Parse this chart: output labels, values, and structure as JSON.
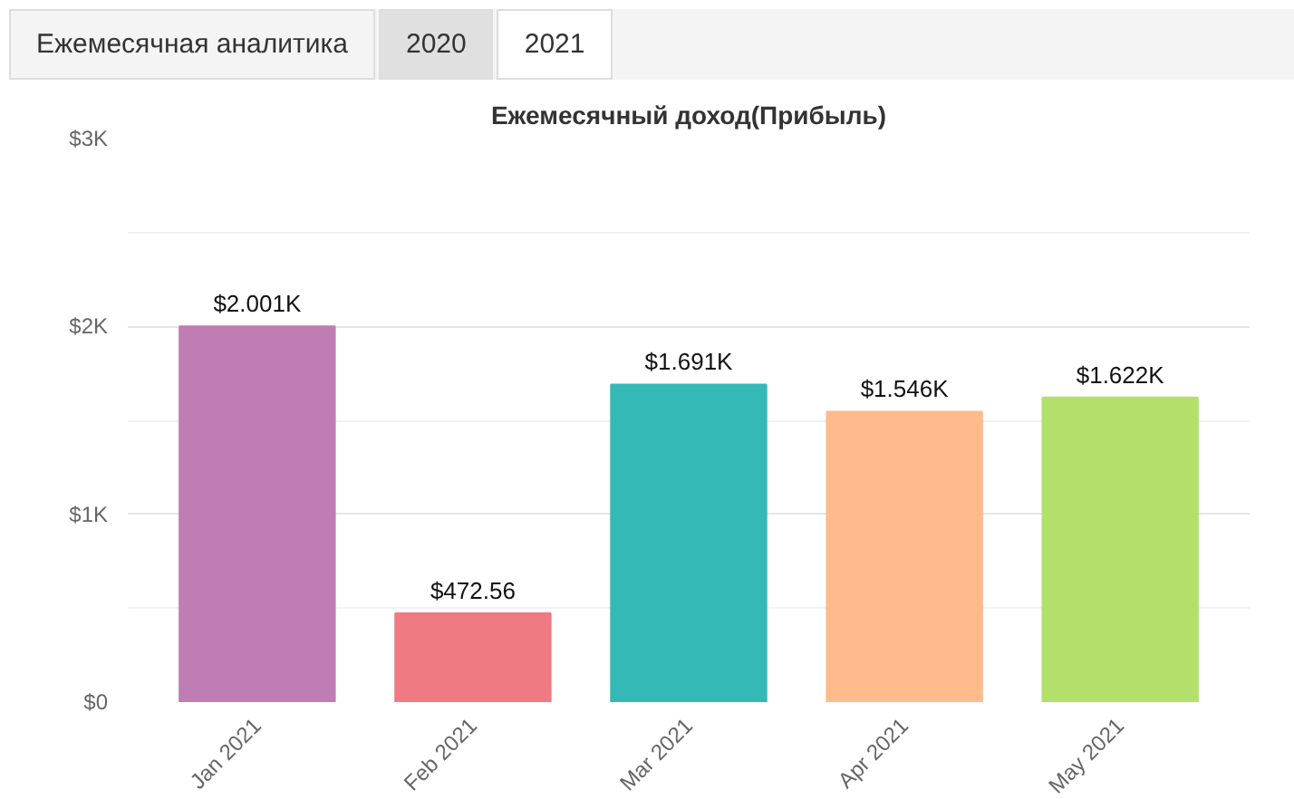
{
  "chart_data": {
    "type": "bar",
    "title": "Ежемесячный доход(Прибыль)",
    "annotations": [
      "Ежемесячная аналитика",
      "2020",
      "2021"
    ],
    "categories": [
      "Jan 2021",
      "Feb 2021",
      "Mar 2021",
      "Apr 2021",
      "May 2021"
    ],
    "values": [
      2001,
      472.56,
      1691,
      1546,
      1622
    ],
    "colors": [
      "#bf7db4",
      "#f07a82",
      "#35b9b6",
      "#ffbb8c",
      "#b3e06b"
    ],
    "value_labels": [
      "$2.001K",
      "$472.56",
      "$1.691K",
      "$1.546K",
      "$1.622K"
    ],
    "ylim": [
      0,
      3000
    ],
    "yticks": [
      {
        "value": 0,
        "label": "$0"
      },
      {
        "value": 1000,
        "label": "$1K"
      },
      {
        "value": 2000,
        "label": "$2K"
      },
      {
        "value": 3000,
        "label": "$3K"
      }
    ],
    "grid": "y"
  }
}
